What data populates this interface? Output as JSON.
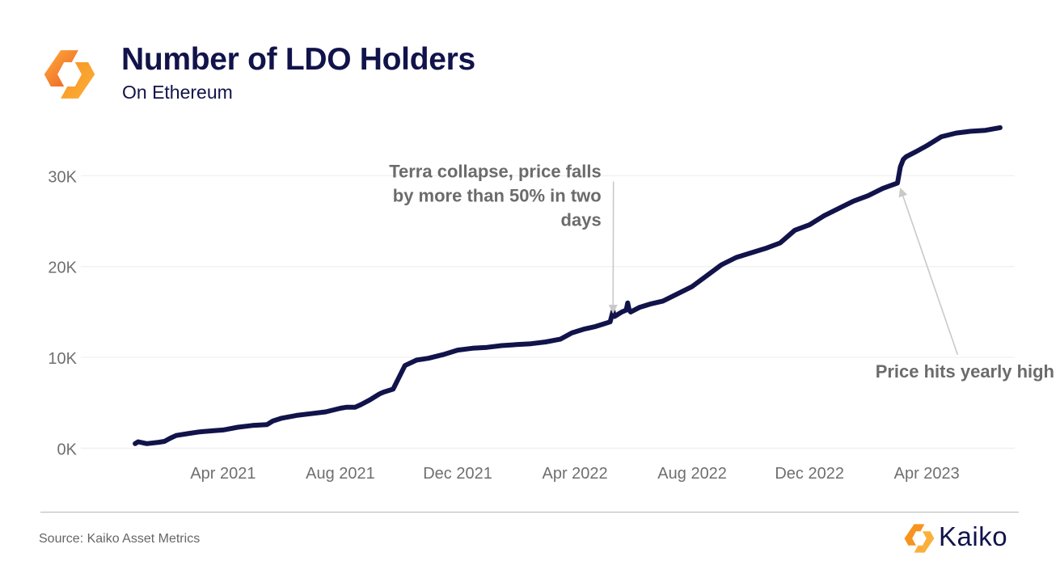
{
  "header": {
    "title": "Number of LDO Holders",
    "subtitle": "On Ethereum"
  },
  "footer": {
    "source": "Source: Kaiko Asset Metrics",
    "brand_name": "Kaiko"
  },
  "colors": {
    "line": "#11134a",
    "grid": "#ececf2",
    "axis_text": "#6f6f6f",
    "annotation_text": "#6b6b6b",
    "arrow": "#c9c9c9",
    "logo_orange": "#f7931e",
    "logo_yellow": "#fbb03b"
  },
  "chart_data": {
    "type": "line",
    "title": "Number of LDO Holders",
    "subtitle": "On Ethereum",
    "xlabel": "",
    "ylabel": "",
    "x_unit": "months since Jan 1 2021",
    "xlim": [
      -1.3,
      30
    ],
    "ylim": [
      -500,
      36000
    ],
    "grid": true,
    "legend": "none",
    "y_ticks": [
      {
        "value": 0,
        "label": "0K"
      },
      {
        "value": 10000,
        "label": "10K"
      },
      {
        "value": 20000,
        "label": "20K"
      },
      {
        "value": 30000,
        "label": "30K"
      }
    ],
    "x_ticks": [
      {
        "value": 3,
        "label": "Apr 2021"
      },
      {
        "value": 7,
        "label": "Aug 2021"
      },
      {
        "value": 11,
        "label": "Dec 2021"
      },
      {
        "value": 15,
        "label": "Apr 2022"
      },
      {
        "value": 19,
        "label": "Aug 2022"
      },
      {
        "value": 23,
        "label": "Dec 2022"
      },
      {
        "value": 27,
        "label": "Apr 2023"
      }
    ],
    "series": [
      {
        "name": "LDO holders",
        "x": [
          0.0,
          0.1,
          0.4,
          0.8,
          1.0,
          1.2,
          1.4,
          1.8,
          2.2,
          2.6,
          3.0,
          3.5,
          4.0,
          4.5,
          4.7,
          5.0,
          5.5,
          6.0,
          6.5,
          7.0,
          7.2,
          7.5,
          7.7,
          8.0,
          8.3,
          8.35,
          8.5,
          8.8,
          9.2,
          9.6,
          10.0,
          10.5,
          11.0,
          11.5,
          12.0,
          12.5,
          13.0,
          13.5,
          14.0,
          14.5,
          14.9,
          15.3,
          15.7,
          16.0,
          16.2,
          16.3,
          16.35,
          16.4,
          16.5,
          16.6,
          16.75,
          16.8,
          16.85,
          16.9,
          17.2,
          17.6,
          18.0,
          18.5,
          19.0,
          19.5,
          20.0,
          20.5,
          21.0,
          21.5,
          22.0,
          22.5,
          23.0,
          23.5,
          24.0,
          24.5,
          25.0,
          25.5,
          26.0,
          26.1,
          26.2,
          26.3,
          26.6,
          27.0,
          27.5,
          28.0,
          28.5,
          29.0,
          29.5
        ],
        "values": [
          500,
          700,
          500,
          650,
          750,
          1100,
          1400,
          1600,
          1800,
          1900,
          2000,
          2300,
          2500,
          2600,
          3000,
          3300,
          3600,
          3800,
          4000,
          4400,
          4500,
          4500,
          4800,
          5300,
          5900,
          6000,
          6200,
          6500,
          9100,
          9700,
          9900,
          10300,
          10800,
          11000,
          11100,
          11300,
          11400,
          11500,
          11700,
          12000,
          12700,
          13100,
          13400,
          13700,
          13900,
          15100,
          14500,
          14600,
          14800,
          15000,
          15200,
          16000,
          15200,
          15000,
          15500,
          15900,
          16200,
          17000,
          17800,
          19000,
          20200,
          21000,
          21500,
          22000,
          22600,
          24000,
          24600,
          25600,
          26400,
          27200,
          27800,
          28600,
          29200,
          31000,
          31800,
          32100,
          32600,
          33300,
          34300,
          34700,
          34900,
          35000,
          35300
        ]
      }
    ],
    "annotations": [
      {
        "lines": [
          "Terra collapse, price falls",
          "by more than 50% in two",
          "days"
        ],
        "text_x": 15.9,
        "text_y": 29800,
        "target_x": 16.3,
        "target_y": 14900,
        "align": "right"
      },
      {
        "lines": [
          "Price hits yearly high"
        ],
        "text_x": 28.3,
        "text_y": 7800,
        "target_x": 26.1,
        "target_y": 28600,
        "align": "center"
      }
    ]
  }
}
